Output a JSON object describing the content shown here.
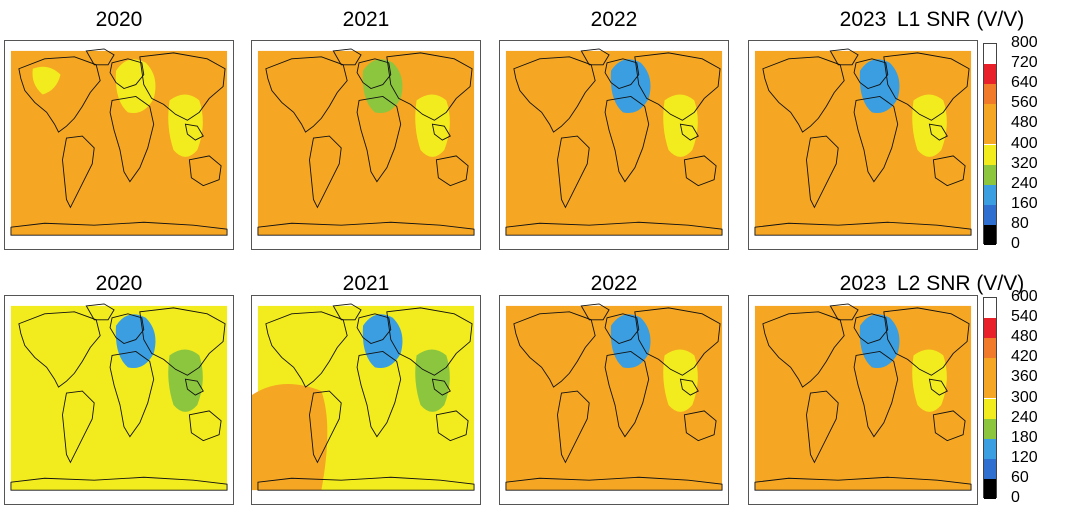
{
  "chart_data": {
    "type": "heatmap",
    "description_of_grid": "2 rows x 4 columns of global maps",
    "rows": [
      {
        "colorbar": {
          "title": "L1 SNR (V/V)",
          "ticks": [
            "800",
            "720",
            "640",
            "560",
            "480",
            "400",
            "320",
            "240",
            "160",
            "80",
            "0"
          ],
          "range": [
            0,
            800
          ],
          "bins": [
            {
              "from": 720,
              "to": 800,
              "color": "#ffffff"
            },
            {
              "from": 640,
              "to": 720,
              "color": "#e8202a"
            },
            {
              "from": 560,
              "to": 640,
              "color": "#f07a2a"
            },
            {
              "from": 480,
              "to": 560,
              "color": "#f5a623"
            },
            {
              "from": 400,
              "to": 480,
              "color": "#f5a623"
            },
            {
              "from": 320,
              "to": 400,
              "color": "#f2ec1e"
            },
            {
              "from": 240,
              "to": 320,
              "color": "#8cc63f"
            },
            {
              "from": 160,
              "to": 240,
              "color": "#3a9ee0"
            },
            {
              "from": 80,
              "to": 160,
              "color": "#2f6fd0"
            },
            {
              "from": 0,
              "to": 80,
              "color": "#000000"
            }
          ]
        },
        "panels": [
          {
            "year": "2020",
            "background_level": 480,
            "region_levels": {
              "europe_mideast": 360,
              "east_asia": 360,
              "americas": 360
            }
          },
          {
            "year": "2021",
            "background_level": 480,
            "region_levels": {
              "europe_mideast": 280,
              "east_asia": 360
            }
          },
          {
            "year": "2022",
            "background_level": 480,
            "region_levels": {
              "europe_mideast": 200,
              "east_asia": 360
            }
          },
          {
            "year": "2023",
            "background_level": 480,
            "region_levels": {
              "europe_mideast": 200,
              "east_asia": 360
            }
          }
        ]
      },
      {
        "colorbar": {
          "title": "L2 SNR (V/V)",
          "ticks": [
            "600",
            "540",
            "480",
            "420",
            "360",
            "300",
            "240",
            "180",
            "120",
            "60",
            "0"
          ],
          "range": [
            0,
            600
          ],
          "bins": [
            {
              "from": 540,
              "to": 600,
              "color": "#ffffff"
            },
            {
              "from": 480,
              "to": 540,
              "color": "#e8202a"
            },
            {
              "from": 420,
              "to": 480,
              "color": "#f07a2a"
            },
            {
              "from": 360,
              "to": 420,
              "color": "#f5a623"
            },
            {
              "from": 300,
              "to": 360,
              "color": "#f5a623"
            },
            {
              "from": 240,
              "to": 300,
              "color": "#f2ec1e"
            },
            {
              "from": 180,
              "to": 240,
              "color": "#8cc63f"
            },
            {
              "from": 120,
              "to": 180,
              "color": "#3a9ee0"
            },
            {
              "from": 60,
              "to": 120,
              "color": "#2f6fd0"
            },
            {
              "from": 0,
              "to": 60,
              "color": "#000000"
            }
          ]
        },
        "panels": [
          {
            "year": "2020",
            "background_level": 270,
            "region_levels": {
              "europe_mideast": 150,
              "east_asia": 210
            }
          },
          {
            "year": "2021",
            "background_level": 270,
            "region_levels": {
              "europe_mideast": 150,
              "east_asia": 210,
              "south_america": 390
            }
          },
          {
            "year": "2022",
            "background_level": 390,
            "region_levels": {
              "europe_mideast": 150,
              "east_asia": 270
            }
          },
          {
            "year": "2023",
            "background_level": 390,
            "region_levels": {
              "europe_mideast": 150,
              "east_asia": 270
            }
          }
        ]
      }
    ]
  }
}
